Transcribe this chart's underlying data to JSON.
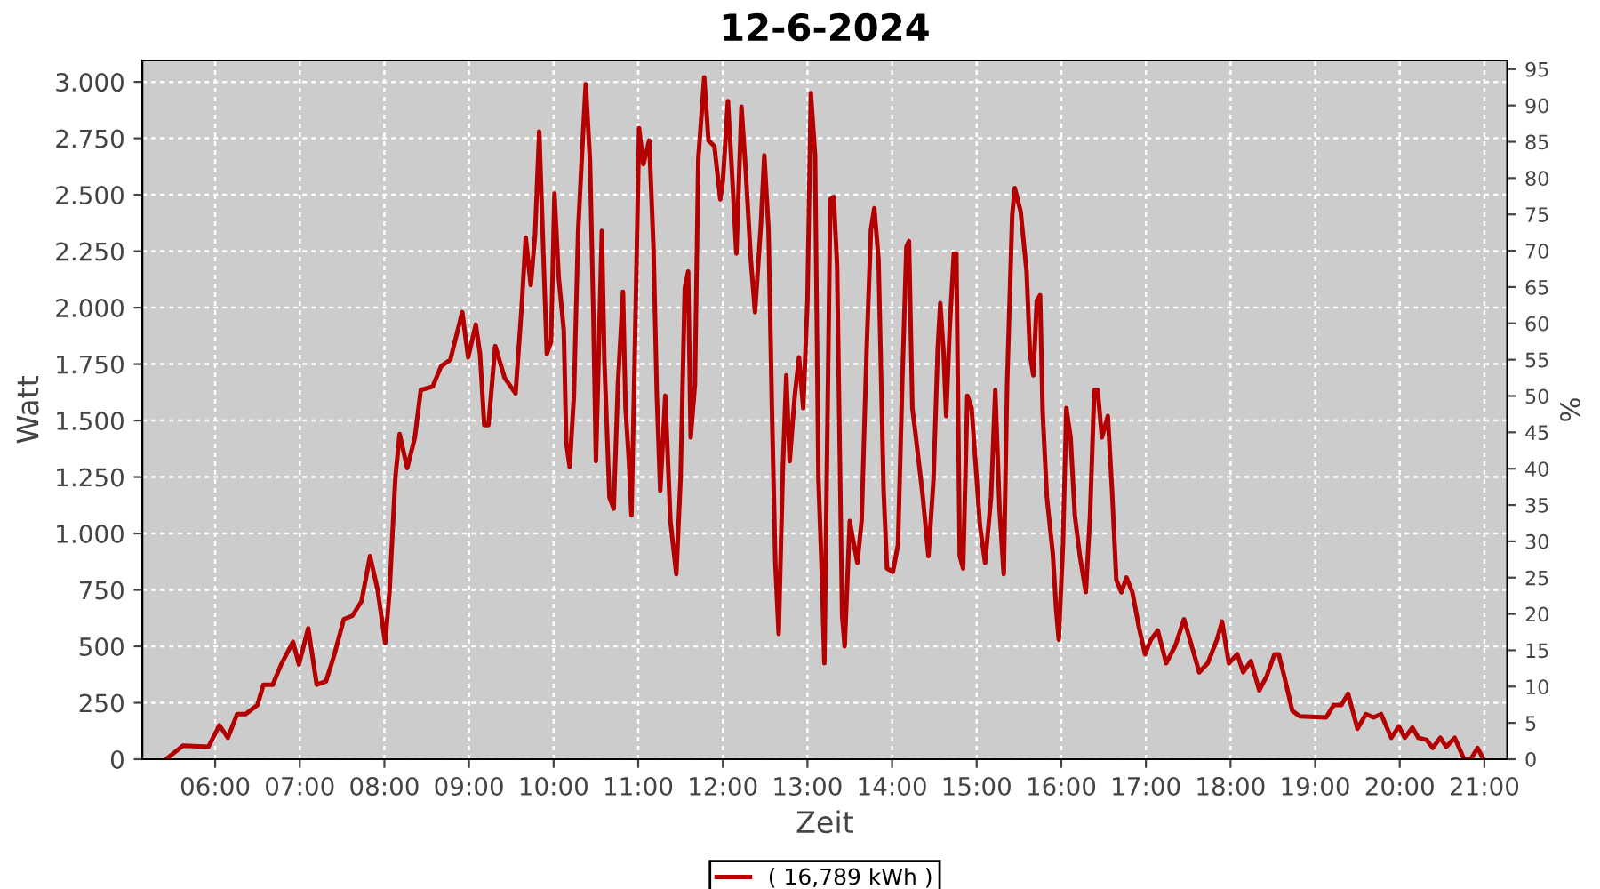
{
  "chart_data": {
    "type": "line",
    "title": "12-6-2024",
    "xlabel": "Zeit",
    "ylabel": "Watt",
    "y2label": "%",
    "x": [
      5.42,
      5.52,
      5.62,
      5.92,
      6.05,
      6.15,
      6.26,
      6.36,
      6.5,
      6.57,
      6.68,
      6.78,
      6.92,
      6.99,
      7.1,
      7.2,
      7.31,
      7.41,
      7.52,
      7.62,
      7.73,
      7.83,
      7.92,
      8.01,
      8.06,
      8.13,
      8.18,
      8.27,
      8.36,
      8.43,
      8.57,
      8.67,
      8.78,
      8.92,
      8.99,
      9.08,
      9.13,
      9.18,
      9.23,
      9.31,
      9.42,
      9.55,
      9.62,
      9.67,
      9.73,
      9.78,
      9.83,
      9.87,
      9.92,
      9.97,
      10.01,
      10.06,
      10.12,
      10.15,
      10.19,
      10.24,
      10.29,
      10.34,
      10.38,
      10.43,
      10.47,
      10.5,
      10.57,
      10.6,
      10.66,
      10.71,
      10.76,
      10.82,
      10.85,
      10.89,
      10.92,
      10.97,
      11.01,
      11.06,
      11.13,
      11.18,
      11.22,
      11.26,
      11.32,
      11.38,
      11.45,
      11.5,
      11.55,
      11.59,
      11.62,
      11.67,
      11.71,
      11.78,
      11.83,
      11.9,
      11.97,
      12.0,
      12.06,
      12.11,
      12.16,
      12.22,
      12.27,
      12.33,
      12.38,
      12.45,
      12.49,
      12.54,
      12.58,
      12.62,
      12.66,
      12.71,
      12.75,
      12.79,
      12.85,
      12.9,
      12.95,
      13.0,
      13.04,
      13.09,
      13.13,
      13.17,
      13.2,
      13.27,
      13.31,
      13.35,
      13.41,
      13.44,
      13.5,
      13.53,
      13.59,
      13.64,
      13.7,
      13.75,
      13.79,
      13.84,
      13.9,
      13.94,
      14.01,
      14.07,
      14.12,
      14.17,
      14.2,
      14.24,
      14.29,
      14.36,
      14.43,
      14.49,
      14.54,
      14.57,
      14.61,
      14.64,
      14.68,
      14.73,
      14.76,
      14.8,
      14.84,
      14.89,
      14.94,
      14.99,
      15.04,
      15.1,
      15.17,
      15.22,
      15.27,
      15.32,
      15.36,
      15.42,
      15.45,
      15.52,
      15.59,
      15.63,
      15.67,
      15.71,
      15.75,
      15.78,
      15.83,
      15.9,
      15.94,
      15.97,
      16.02,
      16.06,
      16.11,
      16.16,
      16.22,
      16.29,
      16.34,
      16.39,
      16.43,
      16.48,
      16.55,
      16.6,
      16.65,
      16.71,
      16.77,
      16.84,
      16.92,
      16.99,
      17.06,
      17.14,
      17.24,
      17.35,
      17.45,
      17.52,
      17.63,
      17.73,
      17.84,
      17.9,
      17.98,
      18.08,
      18.15,
      18.24,
      18.34,
      18.43,
      18.52,
      18.57,
      18.64,
      18.73,
      18.82,
      19.13,
      19.22,
      19.31,
      19.39,
      19.5,
      19.6,
      19.69,
      19.78,
      19.9,
      19.99,
      20.06,
      20.15,
      20.22,
      20.32,
      20.39,
      20.48,
      20.55,
      20.65,
      20.76,
      20.84,
      20.92,
      20.99
    ],
    "series": [
      {
        "name": "( 16,789 kWh )",
        "color": "#b40000",
        "values": [
          0,
          30,
          60,
          55,
          150,
          95,
          200,
          200,
          240,
          330,
          330,
          420,
          520,
          420,
          580,
          330,
          345,
          465,
          620,
          635,
          700,
          900,
          750,
          515,
          740,
          1250,
          1440,
          1290,
          1425,
          1635,
          1650,
          1740,
          1770,
          1980,
          1780,
          1925,
          1795,
          1480,
          1480,
          1830,
          1690,
          1620,
          1990,
          2310,
          2100,
          2320,
          2780,
          2340,
          1795,
          1850,
          2505,
          2135,
          1900,
          1400,
          1295,
          1610,
          2340,
          2715,
          2990,
          2650,
          1965,
          1320,
          2340,
          1765,
          1160,
          1110,
          1660,
          2070,
          1555,
          1320,
          1080,
          2000,
          2795,
          2635,
          2740,
          2270,
          1610,
          1190,
          1610,
          1055,
          820,
          1240,
          2085,
          2160,
          1425,
          1660,
          2660,
          3020,
          2740,
          2715,
          2480,
          2560,
          2915,
          2585,
          2240,
          2890,
          2610,
          2215,
          1980,
          2370,
          2675,
          2345,
          1555,
          870,
          555,
          1295,
          1700,
          1320,
          1610,
          1780,
          1555,
          2030,
          2950,
          2675,
          1240,
          820,
          425,
          2480,
          2490,
          2190,
          635,
          500,
          1055,
          990,
          870,
          1055,
          1820,
          2345,
          2440,
          2215,
          1190,
          845,
          830,
          950,
          1660,
          2270,
          2295,
          1555,
          1400,
          1175,
          900,
          1240,
          1820,
          2020,
          1795,
          1520,
          1900,
          2240,
          2240,
          900,
          845,
          1610,
          1555,
          1295,
          1030,
          870,
          1160,
          1635,
          1110,
          820,
          1660,
          2410,
          2530,
          2425,
          2160,
          1795,
          1700,
          2030,
          2055,
          1535,
          1160,
          910,
          660,
          530,
          950,
          1555,
          1425,
          1080,
          900,
          740,
          1080,
          1635,
          1635,
          1425,
          1520,
          1190,
          795,
          740,
          805,
          740,
          580,
          465,
          530,
          570,
          425,
          505,
          620,
          530,
          385,
          425,
          530,
          610,
          425,
          465,
          385,
          435,
          305,
          370,
          465,
          465,
          360,
          215,
          190,
          185,
          240,
          240,
          290,
          135,
          200,
          185,
          200,
          95,
          145,
          95,
          140,
          95,
          85,
          50,
          95,
          55,
          95,
          0,
          0,
          50,
          0
        ]
      }
    ],
    "xlim": [
      5.14,
      21.27
    ],
    "xticks": [
      {
        "value": 6,
        "label": "06:00"
      },
      {
        "value": 7,
        "label": "07:00"
      },
      {
        "value": 8,
        "label": "08:00"
      },
      {
        "value": 9,
        "label": "09:00"
      },
      {
        "value": 10,
        "label": "10:00"
      },
      {
        "value": 11,
        "label": "11:00"
      },
      {
        "value": 12,
        "label": "12:00"
      },
      {
        "value": 13,
        "label": "13:00"
      },
      {
        "value": 14,
        "label": "14:00"
      },
      {
        "value": 15,
        "label": "15:00"
      },
      {
        "value": 16,
        "label": "16:00"
      },
      {
        "value": 17,
        "label": "17:00"
      },
      {
        "value": 18,
        "label": "18:00"
      },
      {
        "value": 19,
        "label": "19:00"
      },
      {
        "value": 20,
        "label": "20:00"
      },
      {
        "value": 21,
        "label": "21:00"
      }
    ],
    "ylim": [
      0,
      3095
    ],
    "yticks": [
      0,
      250,
      500,
      750,
      {
        "value": 1000,
        "label": "1.000"
      },
      {
        "value": 1250,
        "label": "1.250"
      },
      {
        "value": 1500,
        "label": "1.500"
      },
      {
        "value": 1750,
        "label": "1.750"
      },
      {
        "value": 2000,
        "label": "2.000"
      },
      {
        "value": 2250,
        "label": "2.250"
      },
      {
        "value": 2500,
        "label": "2.500"
      },
      {
        "value": 2750,
        "label": "2.750"
      },
      {
        "value": 3000,
        "label": "3.000"
      }
    ],
    "y2lim": [
      0,
      96.2
    ],
    "y2ticks": [
      0,
      5,
      10,
      15,
      20,
      25,
      30,
      35,
      40,
      45,
      50,
      55,
      60,
      65,
      70,
      75,
      80,
      85,
      90,
      95
    ],
    "grid": true,
    "legend": "bottom",
    "marker": "none",
    "line_style": "solid"
  }
}
